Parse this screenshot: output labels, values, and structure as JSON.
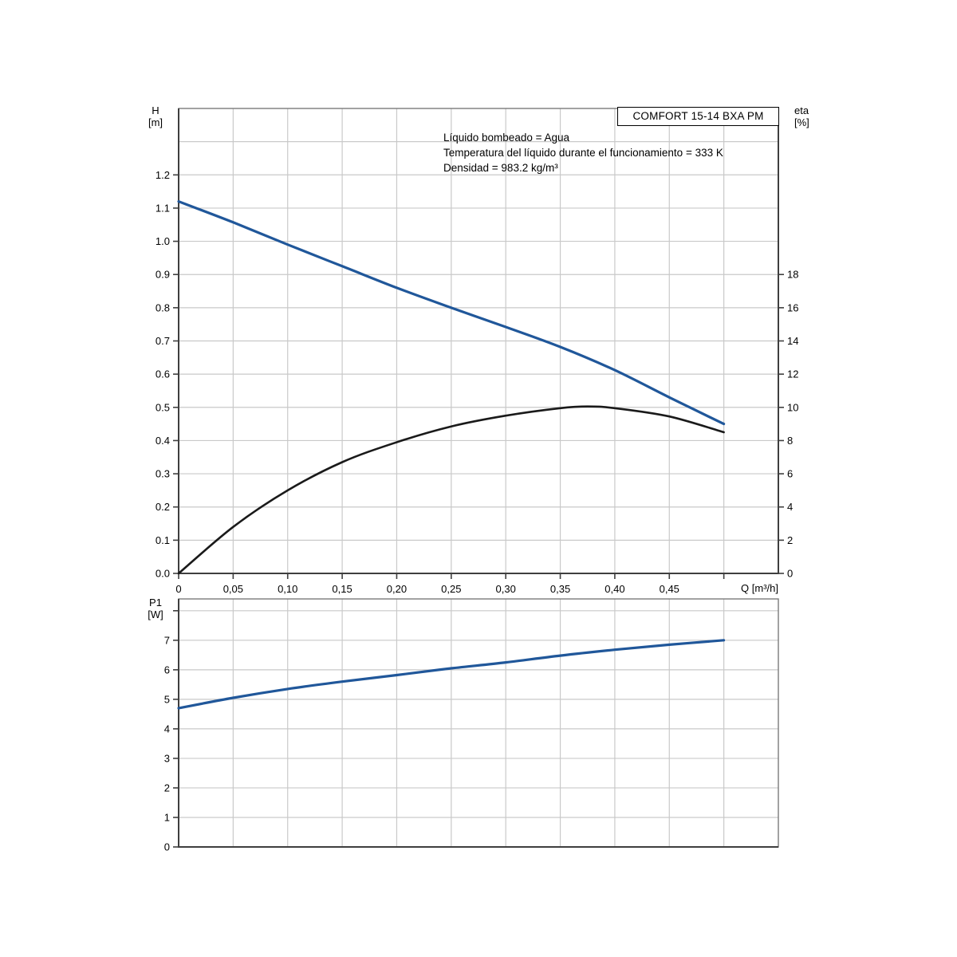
{
  "title_box": {
    "label": "COMFORT 15-14 BXA PM"
  },
  "annotations": [
    "Líquido bombeado = Agua",
    "Temperatura del líquido durante el funcionamiento = 333 K",
    "Densidad = 983.2 kg/m³"
  ],
  "colors": {
    "curve_blue": "#20579a",
    "curve_black": "#1a1a1a",
    "grid": "#c9c9c9",
    "frame": "#7a7a7a",
    "axis": "#3f3f3f",
    "text": "#000000"
  },
  "chart_data": [
    {
      "id": "head-efficiency",
      "type": "line",
      "title": "COMFORT 15-14 BXA PM",
      "xlabel": "Q [m³/h]",
      "ylabel_left_lines": [
        "H",
        "[m]"
      ],
      "ylabel_right_lines": [
        "eta",
        "[%]"
      ],
      "xlim": [
        0,
        0.55
      ],
      "ylim_left": [
        0,
        1.4
      ],
      "ylim_right": [
        0,
        28
      ],
      "grid": true,
      "x_grid": [
        0.05,
        0.1,
        0.15,
        0.2,
        0.25,
        0.3,
        0.35,
        0.4,
        0.45,
        0.5
      ],
      "y_grid_left": [
        0.1,
        0.2,
        0.3,
        0.4,
        0.5,
        0.6,
        0.7,
        0.8,
        0.9,
        1.0,
        1.1,
        1.2,
        1.3
      ],
      "x_ticks": {
        "values": [
          0,
          0.05,
          0.1,
          0.15,
          0.2,
          0.25,
          0.3,
          0.35,
          0.4,
          0.45,
          0.5
        ],
        "labels": [
          "0",
          "0,05",
          "0,10",
          "0,15",
          "0,20",
          "0,25",
          "0,30",
          "0,35",
          "0,40",
          "0,45",
          null
        ]
      },
      "y_ticks_left": {
        "values": [
          0,
          0.1,
          0.2,
          0.3,
          0.4,
          0.5,
          0.6,
          0.7,
          0.8,
          0.9,
          1.0,
          1.1,
          1.2
        ],
        "labels": [
          "0.0",
          "0.1",
          "0.2",
          "0.3",
          "0.4",
          "0.5",
          "0.6",
          "0.7",
          "0.8",
          "0.9",
          "1.0",
          "1.1",
          "1.2"
        ]
      },
      "y_ticks_right": {
        "values": [
          0,
          2,
          4,
          6,
          8,
          10,
          12,
          14,
          16,
          18
        ],
        "labels": [
          "0",
          "2",
          "4",
          "6",
          "8",
          "10",
          "12",
          "14",
          "16",
          "18"
        ]
      },
      "series": [
        {
          "name": "H (head curve)",
          "axis": "left",
          "color_key": "curve_blue",
          "stroke_width": 3.2,
          "points": [
            [
              0,
              1.12
            ],
            [
              0.05,
              1.057
            ],
            [
              0.1,
              0.99
            ],
            [
              0.15,
              0.925
            ],
            [
              0.2,
              0.86
            ],
            [
              0.25,
              0.8
            ],
            [
              0.3,
              0.742
            ],
            [
              0.35,
              0.682
            ],
            [
              0.4,
              0.612
            ],
            [
              0.45,
              0.53
            ],
            [
              0.5,
              0.45
            ]
          ]
        },
        {
          "name": "eta (efficiency curve)",
          "axis": "right",
          "color_key": "curve_black",
          "stroke_width": 2.6,
          "points": [
            [
              0,
              0
            ],
            [
              0.05,
              2.8
            ],
            [
              0.1,
              5.0
            ],
            [
              0.15,
              6.7
            ],
            [
              0.2,
              7.9
            ],
            [
              0.25,
              8.85
            ],
            [
              0.3,
              9.5
            ],
            [
              0.35,
              9.95
            ],
            [
              0.375,
              10.05
            ],
            [
              0.4,
              9.95
            ],
            [
              0.45,
              9.45
            ],
            [
              0.5,
              8.5
            ]
          ]
        }
      ]
    },
    {
      "id": "power",
      "type": "line",
      "title": "",
      "xlabel": "",
      "ylabel_left_lines": [
        "P1",
        "[W]"
      ],
      "xlim": [
        0,
        0.55
      ],
      "ylim_left": [
        0,
        8.4
      ],
      "grid": true,
      "x_grid": [
        0.05,
        0.1,
        0.15,
        0.2,
        0.25,
        0.3,
        0.35,
        0.4,
        0.45,
        0.5
      ],
      "y_grid_left": [
        1,
        2,
        3,
        4,
        5,
        6,
        7,
        8
      ],
      "x_ticks": {
        "values": [],
        "labels": []
      },
      "y_ticks_left": {
        "values": [
          0,
          1,
          2,
          3,
          4,
          5,
          6,
          7,
          8
        ],
        "labels": [
          "0",
          "1",
          "2",
          "3",
          "4",
          "5",
          "6",
          "7",
          null
        ]
      },
      "y_ticks_right": {
        "values": [],
        "labels": []
      },
      "series": [
        {
          "name": "P1 (input power curve)",
          "axis": "left",
          "color_key": "curve_blue",
          "stroke_width": 3.2,
          "points": [
            [
              0,
              4.7
            ],
            [
              0.05,
              5.05
            ],
            [
              0.1,
              5.35
            ],
            [
              0.15,
              5.6
            ],
            [
              0.2,
              5.82
            ],
            [
              0.25,
              6.05
            ],
            [
              0.3,
              6.25
            ],
            [
              0.35,
              6.48
            ],
            [
              0.4,
              6.68
            ],
            [
              0.45,
              6.85
            ],
            [
              0.5,
              7.0
            ]
          ]
        }
      ]
    }
  ]
}
